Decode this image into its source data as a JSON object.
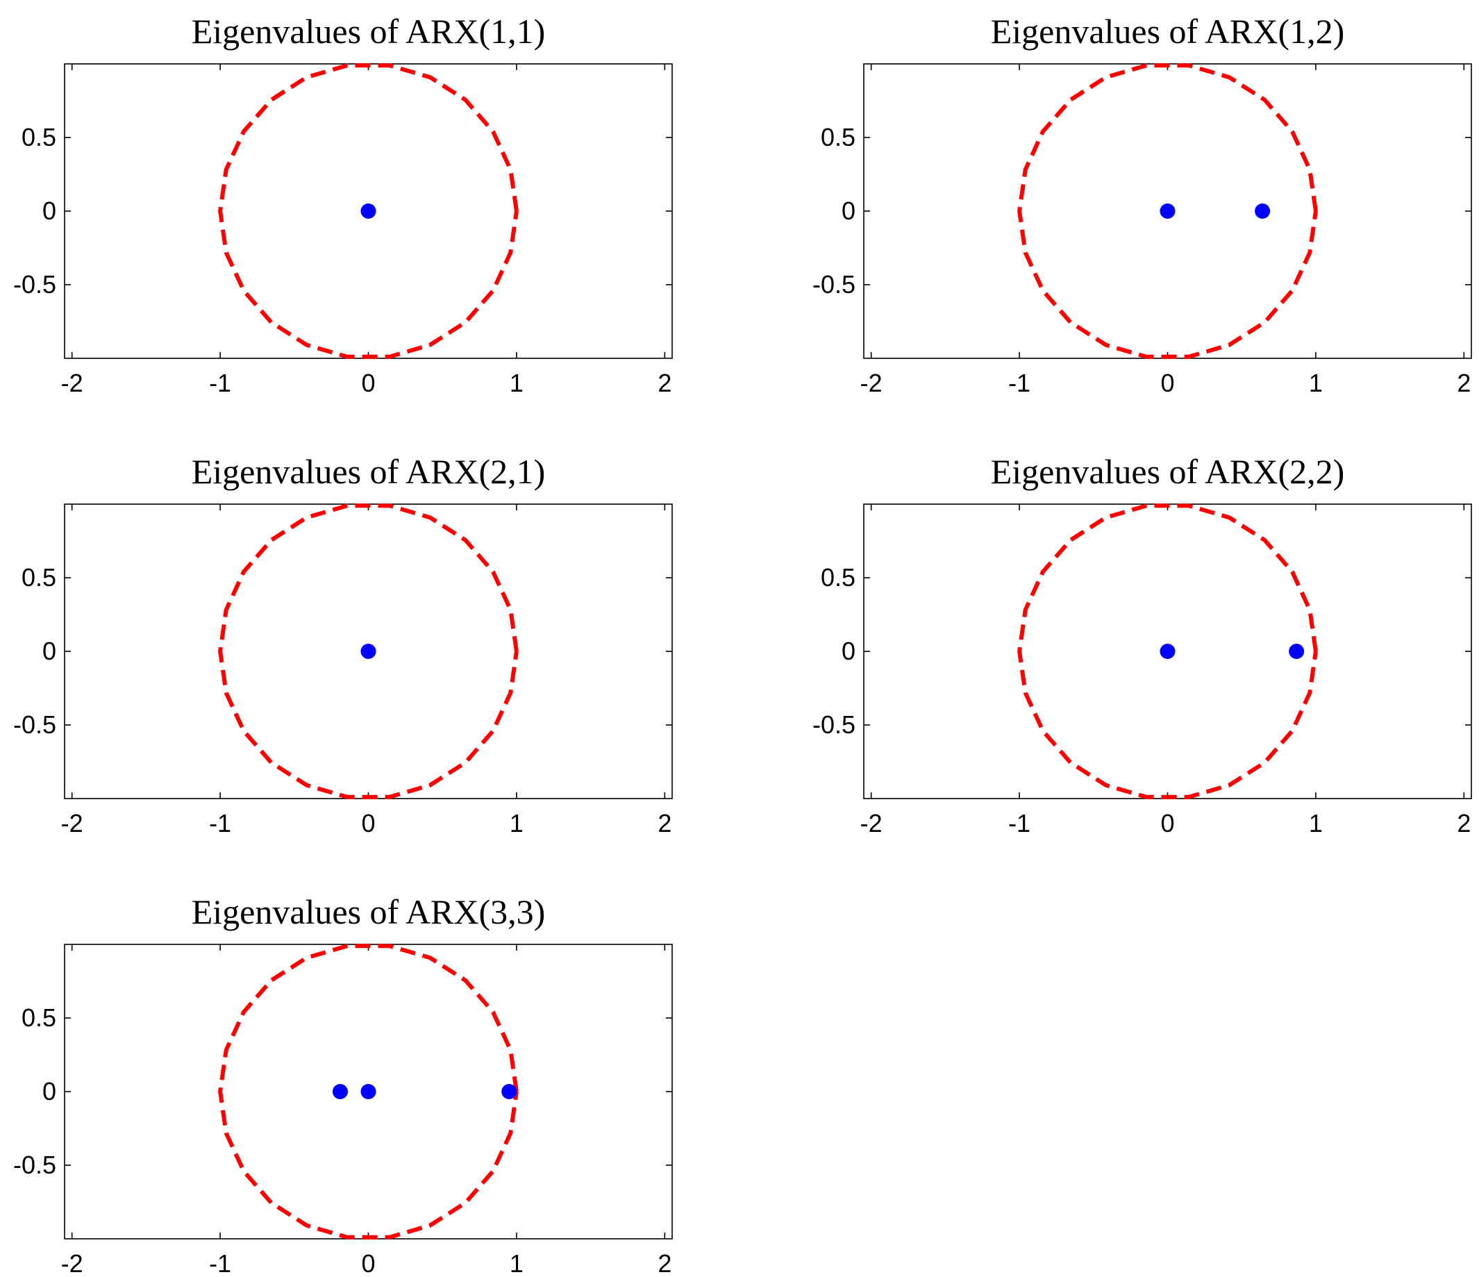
{
  "chart_data": [
    {
      "type": "scatter",
      "title": "Eigenvalues of ARX(1,1)",
      "xlim": [
        -2.05,
        2.05
      ],
      "ylim": [
        -1,
        1
      ],
      "xticks": [
        -2,
        -1,
        0,
        1,
        2
      ],
      "yticks": [
        0.5,
        0,
        -0.5
      ],
      "xtick_labels": [
        "-2",
        "-1",
        "0",
        "1",
        "2"
      ],
      "ytick_labels": [
        "0.5",
        "0",
        "-0.5"
      ],
      "circle": {
        "center": [
          0,
          0
        ],
        "radius": 1,
        "style": "dashed",
        "color": "#ff0000"
      },
      "points": [
        {
          "x": 0,
          "y": 0
        }
      ],
      "point_color": "#0000ff"
    },
    {
      "type": "scatter",
      "title": "Eigenvalues of ARX(1,2)",
      "xlim": [
        -2.05,
        2.05
      ],
      "ylim": [
        -1,
        1
      ],
      "xticks": [
        -2,
        -1,
        0,
        1,
        2
      ],
      "yticks": [
        0.5,
        0,
        -0.5
      ],
      "xtick_labels": [
        "-2",
        "-1",
        "0",
        "1",
        "2"
      ],
      "ytick_labels": [
        "0.5",
        "0",
        "-0.5"
      ],
      "circle": {
        "center": [
          0,
          0
        ],
        "radius": 1,
        "style": "dashed",
        "color": "#ff0000"
      },
      "points": [
        {
          "x": 0,
          "y": 0
        },
        {
          "x": 0.64,
          "y": 0
        }
      ],
      "point_color": "#0000ff"
    },
    {
      "type": "scatter",
      "title": "Eigenvalues of ARX(2,1)",
      "xlim": [
        -2.05,
        2.05
      ],
      "ylim": [
        -1,
        1
      ],
      "xticks": [
        -2,
        -1,
        0,
        1,
        2
      ],
      "yticks": [
        0.5,
        0,
        -0.5
      ],
      "xtick_labels": [
        "-2",
        "-1",
        "0",
        "1",
        "2"
      ],
      "ytick_labels": [
        "0.5",
        "0",
        "-0.5"
      ],
      "circle": {
        "center": [
          0,
          0
        ],
        "radius": 1,
        "style": "dashed",
        "color": "#ff0000"
      },
      "points": [
        {
          "x": 0,
          "y": 0
        }
      ],
      "point_color": "#0000ff"
    },
    {
      "type": "scatter",
      "title": "Eigenvalues of ARX(2,2)",
      "xlim": [
        -2.05,
        2.05
      ],
      "ylim": [
        -1,
        1
      ],
      "xticks": [
        -2,
        -1,
        0,
        1,
        2
      ],
      "yticks": [
        0.5,
        0,
        -0.5
      ],
      "xtick_labels": [
        "-2",
        "-1",
        "0",
        "1",
        "2"
      ],
      "ytick_labels": [
        "0.5",
        "0",
        "-0.5"
      ],
      "circle": {
        "center": [
          0,
          0
        ],
        "radius": 1,
        "style": "dashed",
        "color": "#ff0000"
      },
      "points": [
        {
          "x": 0,
          "y": 0
        },
        {
          "x": 0.87,
          "y": 0
        }
      ],
      "point_color": "#0000ff"
    },
    {
      "type": "scatter",
      "title": "Eigenvalues of ARX(3,3)",
      "xlim": [
        -2.05,
        2.05
      ],
      "ylim": [
        -1,
        1
      ],
      "xticks": [
        -2,
        -1,
        0,
        1,
        2
      ],
      "yticks": [
        0.5,
        0,
        -0.5
      ],
      "xtick_labels": [
        "-2",
        "-1",
        "0",
        "1",
        "2"
      ],
      "ytick_labels": [
        "0.5",
        "0",
        "-0.5"
      ],
      "circle": {
        "center": [
          0,
          0
        ],
        "radius": 1,
        "style": "dashed",
        "color": "#ff0000"
      },
      "points": [
        {
          "x": -0.19,
          "y": 0
        },
        {
          "x": 0,
          "y": 0
        },
        {
          "x": 0.95,
          "y": 0
        }
      ],
      "point_color": "#0000ff"
    }
  ]
}
